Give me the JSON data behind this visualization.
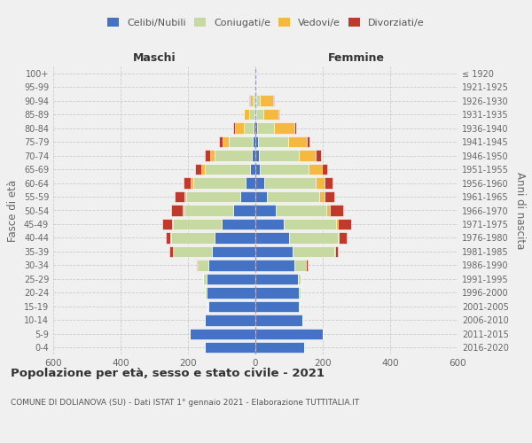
{
  "age_groups": [
    "0-4",
    "5-9",
    "10-14",
    "15-19",
    "20-24",
    "25-29",
    "30-34",
    "35-39",
    "40-44",
    "45-49",
    "50-54",
    "55-59",
    "60-64",
    "65-69",
    "70-74",
    "75-79",
    "80-84",
    "85-89",
    "90-94",
    "95-99",
    "100+"
  ],
  "birth_years": [
    "2016-2020",
    "2011-2015",
    "2006-2010",
    "2001-2005",
    "1996-2000",
    "1991-1995",
    "1986-1990",
    "1981-1985",
    "1976-1980",
    "1971-1975",
    "1966-1970",
    "1961-1965",
    "1956-1960",
    "1951-1955",
    "1946-1950",
    "1941-1945",
    "1936-1940",
    "1931-1935",
    "1926-1930",
    "1921-1925",
    "≤ 1920"
  ],
  "maschi": {
    "celibi": [
      150,
      195,
      150,
      140,
      145,
      145,
      140,
      130,
      120,
      100,
      65,
      45,
      30,
      15,
      10,
      8,
      5,
      3,
      2,
      0,
      0
    ],
    "coniugati": [
      0,
      0,
      0,
      2,
      5,
      10,
      30,
      115,
      130,
      145,
      145,
      160,
      155,
      135,
      110,
      70,
      30,
      15,
      5,
      0,
      0
    ],
    "vedovi": [
      0,
      0,
      0,
      0,
      0,
      0,
      0,
      1,
      2,
      2,
      5,
      5,
      8,
      10,
      15,
      20,
      25,
      15,
      10,
      0,
      0
    ],
    "divorziati": [
      0,
      0,
      0,
      0,
      0,
      0,
      5,
      10,
      15,
      30,
      35,
      30,
      20,
      20,
      15,
      10,
      5,
      2,
      2,
      0,
      0
    ]
  },
  "femmine": {
    "nubili": [
      145,
      200,
      140,
      130,
      130,
      125,
      115,
      110,
      100,
      85,
      60,
      35,
      25,
      12,
      10,
      8,
      5,
      3,
      2,
      0,
      0
    ],
    "coniugate": [
      0,
      0,
      0,
      2,
      5,
      10,
      35,
      125,
      145,
      155,
      150,
      155,
      155,
      145,
      120,
      90,
      50,
      20,
      10,
      2,
      0
    ],
    "vedove": [
      0,
      0,
      0,
      0,
      0,
      0,
      0,
      1,
      2,
      5,
      10,
      15,
      25,
      40,
      50,
      55,
      60,
      45,
      40,
      2,
      0
    ],
    "divorziate": [
      0,
      0,
      0,
      0,
      0,
      0,
      5,
      10,
      25,
      40,
      40,
      30,
      25,
      15,
      15,
      8,
      5,
      2,
      2,
      0,
      0
    ]
  },
  "colors": {
    "celibi_nubili": "#4472c4",
    "coniugati": "#c5d9a0",
    "vedovi": "#f5b942",
    "divorziati": "#c0392b"
  },
  "title": "Popolazione per età, sesso e stato civile - 2021",
  "subtitle": "COMUNE DI DOLIANOVA (SU) - Dati ISTAT 1° gennaio 2021 - Elaborazione TUTTITALIA.IT",
  "maschi_label": "Maschi",
  "femmine_label": "Femmine",
  "ylabel_left": "Fasce di età",
  "ylabel_right": "Anni di nascita",
  "xlim": 600,
  "background_color": "#f0f0f0",
  "plot_bg": "#f0f0f0",
  "legend_labels": [
    "Celibi/Nubili",
    "Coniugati/e",
    "Vedovi/e",
    "Divorziati/e"
  ]
}
